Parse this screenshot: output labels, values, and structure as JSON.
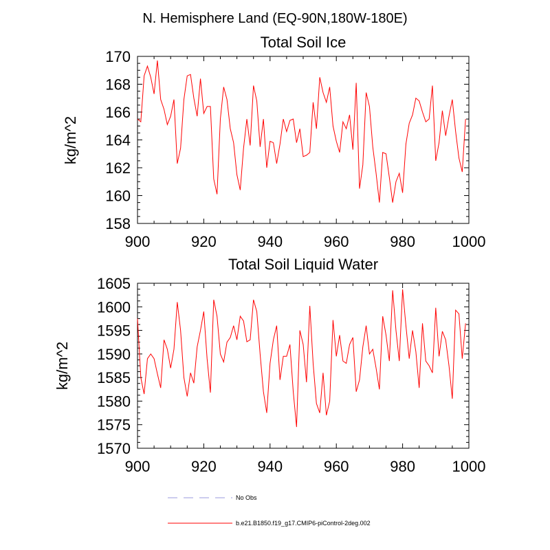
{
  "suptitle": "N. Hemisphere Land (EQ-90N,180W-180E)",
  "colors": {
    "series": "#ff0000",
    "obs": "#9999dd",
    "axis": "#000000"
  },
  "legend": {
    "items": [
      {
        "label": "No Obs",
        "style": "dashed",
        "color": "#9999dd"
      },
      {
        "label": "b.e21.B1850.f19_g17.CMIP6-piControl-2deg.002",
        "style": "solid",
        "color": "#ff0000"
      }
    ]
  },
  "chart_data": [
    {
      "type": "line",
      "title": "Total Soil Ice",
      "xlabel": "",
      "ylabel": "kg/m^2",
      "xlim": [
        900,
        1000
      ],
      "ylim": [
        158,
        170
      ],
      "xticks": [
        900,
        920,
        940,
        960,
        980,
        1000
      ],
      "yticks": [
        158,
        160,
        162,
        164,
        166,
        168,
        170
      ],
      "x_start": 900,
      "series": [
        {
          "name": "b.e21.B1850.f19_g17.CMIP6-piControl-2deg.002",
          "values": [
            165.5,
            165.3,
            168.6,
            169.3,
            168.5,
            167.3,
            169.7,
            166.9,
            166.2,
            165.1,
            165.7,
            166.9,
            162.3,
            163.4,
            166.9,
            168.6,
            168.7,
            167.0,
            165.7,
            168.4,
            165.9,
            166.4,
            166.4,
            161.2,
            160.1,
            165.5,
            167.8,
            166.9,
            164.8,
            163.8,
            161.5,
            160.4,
            163.4,
            165.5,
            163.6,
            167.9,
            166.8,
            163.5,
            165.5,
            162.0,
            163.9,
            163.8,
            162.3,
            163.7,
            165.5,
            164.6,
            165.4,
            165.5,
            163.8,
            164.8,
            162.8,
            162.9,
            163.1,
            166.7,
            164.8,
            168.5,
            167.4,
            166.7,
            167.8,
            165.0,
            163.9,
            163.1,
            165.3,
            164.8,
            165.8,
            163.3,
            168.1,
            160.5,
            162.2,
            167.4,
            166.4,
            163.5,
            161.6,
            159.5,
            163.1,
            163.0,
            161.3,
            159.5,
            161.0,
            161.6,
            160.2,
            163.7,
            165.2,
            165.8,
            167.0,
            166.8,
            166.0,
            165.3,
            165.5,
            167.9,
            162.5,
            163.8,
            166.1,
            164.3,
            165.7,
            166.9,
            164.6,
            162.7,
            161.7,
            165.5
          ]
        }
      ]
    },
    {
      "type": "line",
      "title": "Total Soil Liquid Water",
      "xlabel": "",
      "ylabel": "kg/m^2",
      "xlim": [
        900,
        1000
      ],
      "ylim": [
        1570,
        1605
      ],
      "xticks": [
        900,
        920,
        940,
        960,
        980,
        1000
      ],
      "yticks": [
        1570,
        1575,
        1580,
        1585,
        1590,
        1595,
        1600,
        1605
      ],
      "x_start": 900,
      "series": [
        {
          "name": "b.e21.B1850.f19_g17.CMIP6-piControl-2deg.002",
          "values": [
            1597.5,
            1585.0,
            1581.5,
            1589.0,
            1590.0,
            1589.0,
            1585.8,
            1582.8,
            1593.0,
            1591.0,
            1587.0,
            1591.0,
            1601.0,
            1595.0,
            1585.0,
            1581.0,
            1586.0,
            1583.8,
            1591.5,
            1595.0,
            1599.0,
            1589.0,
            1581.8,
            1601.5,
            1598.0,
            1590.0,
            1588.3,
            1592.5,
            1593.5,
            1596.0,
            1593.0,
            1598.0,
            1597.0,
            1592.6,
            1593.0,
            1601.5,
            1599.0,
            1590.0,
            1582.0,
            1577.5,
            1588.0,
            1593.0,
            1596.0,
            1584.5,
            1589.5,
            1589.5,
            1592.0,
            1582.0,
            1574.5,
            1595.0,
            1592.0,
            1584.0,
            1600.2,
            1588.0,
            1579.5,
            1577.5,
            1586.0,
            1577.0,
            1580.0,
            1597.2,
            1589.5,
            1594.0,
            1588.5,
            1588.0,
            1592.0,
            1593.5,
            1582.0,
            1584.5,
            1591.5,
            1596.0,
            1590.0,
            1591.0,
            1587.0,
            1582.5,
            1598.0,
            1594.0,
            1588.5,
            1603.5,
            1595.0,
            1588.5,
            1603.7,
            1596.0,
            1589.0,
            1595.0,
            1590.5,
            1582.8,
            1596.5,
            1588.5,
            1587.5,
            1586.0,
            1599.8,
            1589.5,
            1594.8,
            1593.0,
            1587.5,
            1580.5,
            1599.3,
            1598.5,
            1589.0,
            1596.5
          ]
        }
      ]
    }
  ]
}
